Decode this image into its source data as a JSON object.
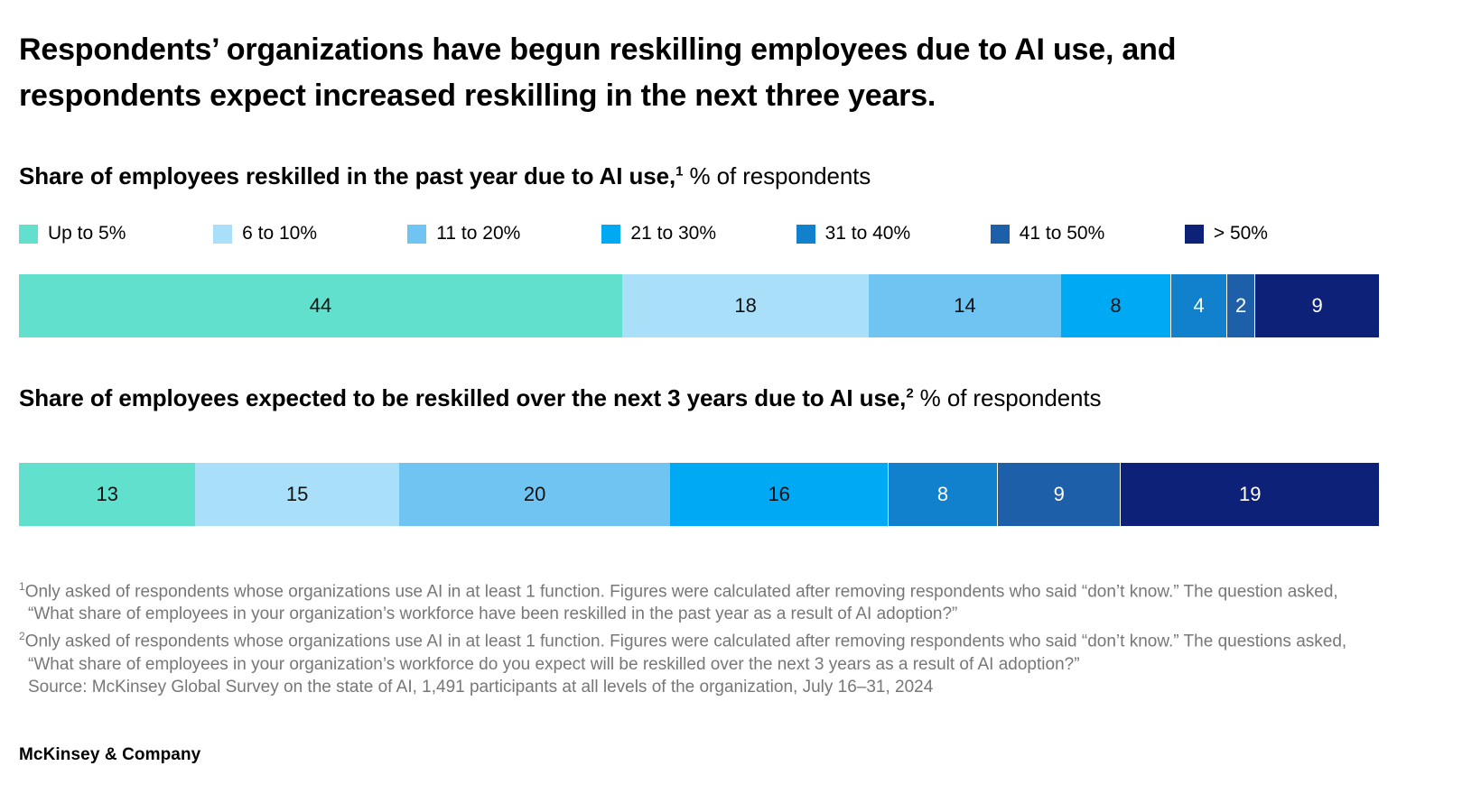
{
  "page": {
    "title": "Respondents’ organizations have begun reskilling employees due to AI use, and respondents expect increased reskilling in the next three years.",
    "footer": "McKinsey & Company"
  },
  "headings": [
    {
      "bold": "Share of employees reskilled in the past year due to AI use,",
      "sup": "1",
      "suffix": " % of respondents"
    },
    {
      "bold": "Share of employees expected to be reskilled over the next 3 years due to AI use,",
      "sup": "2",
      "suffix": " % of respondents"
    }
  ],
  "legend": {
    "items": [
      {
        "label": "Up to 5%",
        "color": "#62E0CE",
        "text_color": "#111111"
      },
      {
        "label": "6 to 10%",
        "color": "#A9DFF8",
        "text_color": "#111111"
      },
      {
        "label": "11 to 20%",
        "color": "#6FC4F1",
        "text_color": "#111111"
      },
      {
        "label": "21 to 30%",
        "color": "#00A9F4",
        "text_color": "#111111"
      },
      {
        "label": "31 to 40%",
        "color": "#1181CE",
        "text_color": "#FFFFFF"
      },
      {
        "label": "41 to 50%",
        "color": "#1D5FA9",
        "text_color": "#FFFFFF"
      },
      {
        "label": "> 50%",
        "color": "#0E2178",
        "text_color": "#FFFFFF"
      }
    ]
  },
  "chart_data": [
    {
      "type": "bar",
      "stacked": true,
      "orientation": "horizontal",
      "title": "Share of employees reskilled in the past year due to AI use",
      "units": "% of respondents",
      "categories": [
        "Up to 5%",
        "6 to 10%",
        "11 to 20%",
        "21 to 30%",
        "31 to 40%",
        "41 to 50%",
        "> 50%"
      ],
      "values": [
        44,
        18,
        14,
        8,
        4,
        2,
        9
      ],
      "xlim": [
        0,
        100
      ],
      "legend_position": "top",
      "grid": false
    },
    {
      "type": "bar",
      "stacked": true,
      "orientation": "horizontal",
      "title": "Share of employees expected to be reskilled over the next 3 years due to AI use",
      "units": "% of respondents",
      "categories": [
        "Up to 5%",
        "6 to 10%",
        "11 to 20%",
        "21 to 30%",
        "31 to 40%",
        "41 to 50%",
        "> 50%"
      ],
      "values": [
        13,
        15,
        20,
        16,
        8,
        9,
        19
      ],
      "xlim": [
        0,
        100
      ],
      "legend_position": "shared-top",
      "grid": false
    }
  ],
  "footnotes": [
    {
      "sup": "1",
      "text": "Only asked of respondents whose organizations use AI in at least 1 function. Figures were calculated after removing respondents who said “don’t know.” The question asked, “What share of employees in your organization’s workforce have been reskilled in the past year as a result of AI adoption?”"
    },
    {
      "sup": "2",
      "text": "Only asked of respondents whose organizations use AI in at least 1 function. Figures were calculated after removing respondents who said “don’t know.” The questions asked, “What share of employees in your organization’s workforce do you expect will be reskilled over the next 3 years as a result of AI adoption?”"
    },
    {
      "sup": "",
      "text": "Source: McKinsey Global Survey on the state of AI, 1,491 participants at all levels of the organization, July 16–31, 2024"
    }
  ]
}
